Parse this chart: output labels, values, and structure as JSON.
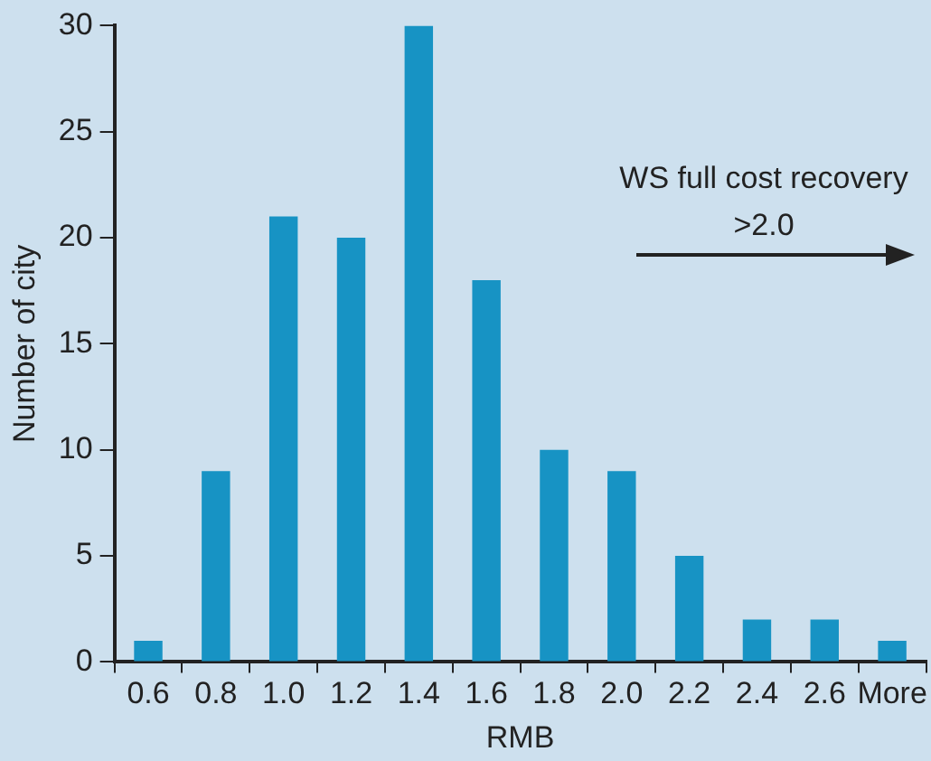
{
  "chart_data": {
    "type": "bar",
    "xlabel": "RMB",
    "ylabel": "Number of city",
    "categories": [
      "0.6",
      "0.8",
      "1.0",
      "1.2",
      "1.4",
      "1.6",
      "1.8",
      "2.0",
      "2.2",
      "2.4",
      "2.6",
      "More"
    ],
    "values": [
      1,
      9,
      21,
      20,
      30,
      18,
      10,
      9,
      5,
      2,
      2,
      1
    ],
    "color": "#1793c4",
    "ylim": [
      0,
      30
    ],
    "yticks": [
      0,
      5,
      10,
      15,
      20,
      25,
      30
    ],
    "grid": false,
    "legend": false,
    "annotations": [
      "WS full cost recovery >2.0"
    ]
  }
}
